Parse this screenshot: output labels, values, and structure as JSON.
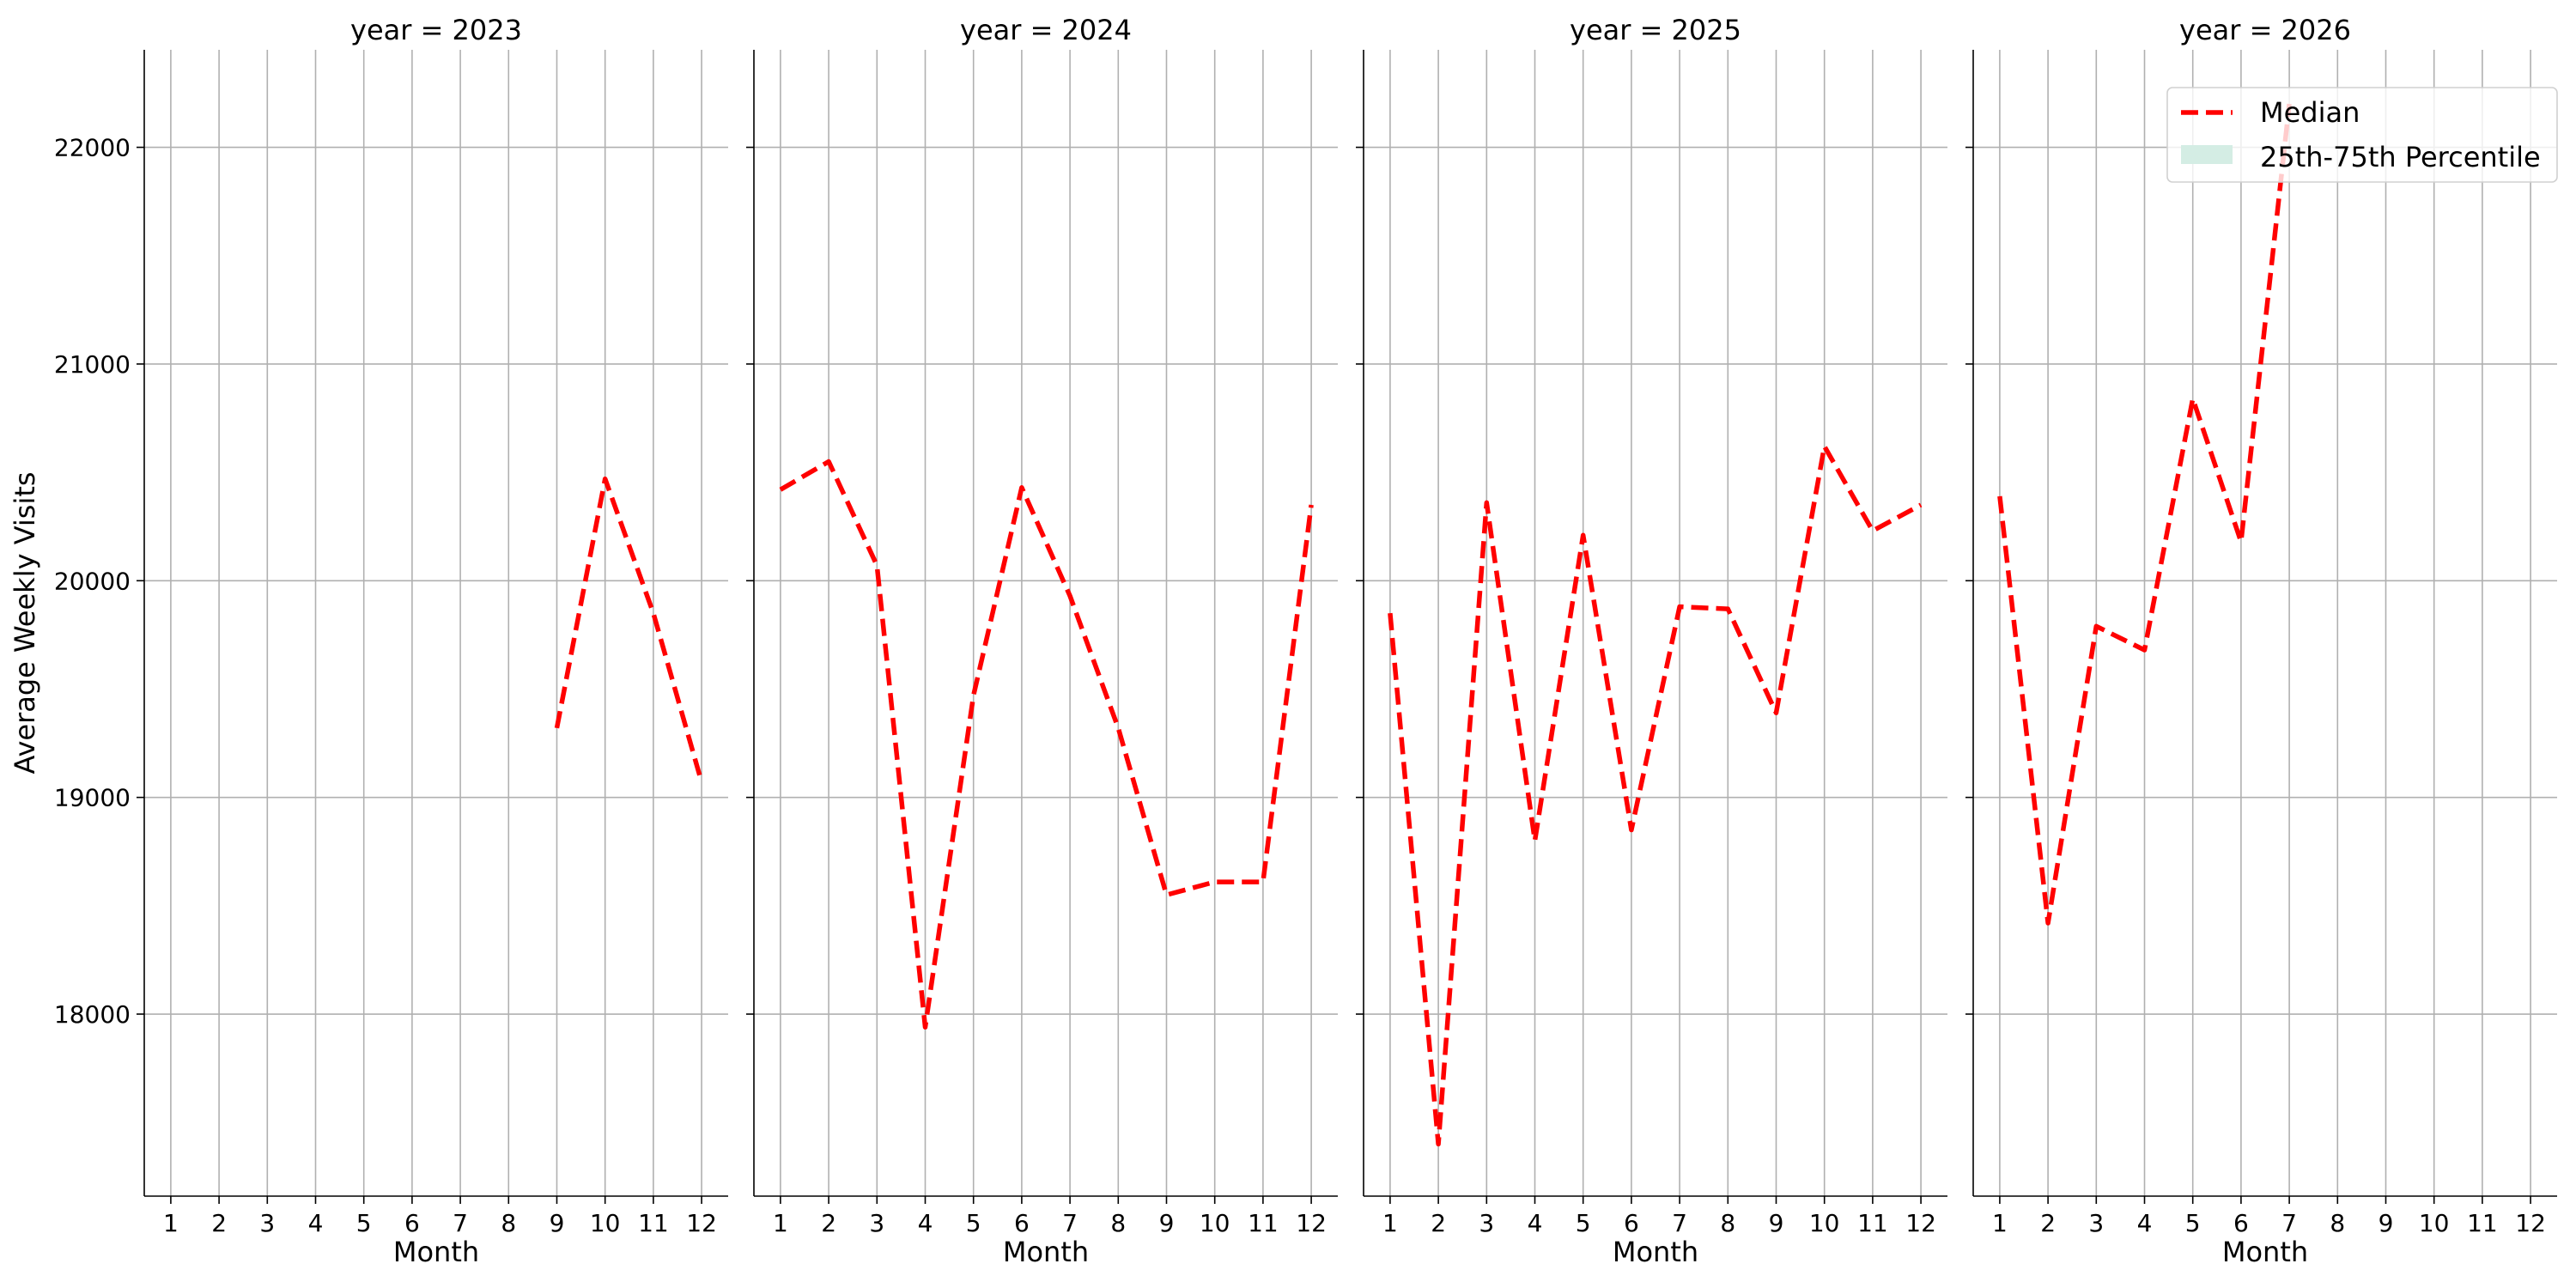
{
  "chart_data": {
    "type": "line",
    "facet_variable": "year",
    "facets": [
      {
        "title": "year = 2023",
        "year": 2023,
        "x": [
          9,
          10,
          11,
          12
        ],
        "median": [
          19320,
          20470,
          19850,
          19070
        ]
      },
      {
        "title": "year = 2024",
        "year": 2024,
        "x": [
          1,
          2,
          3,
          4,
          5,
          6,
          7,
          8,
          9,
          10,
          11,
          12
        ],
        "median": [
          20420,
          20550,
          20070,
          17940,
          19470,
          20430,
          19930,
          19320,
          18550,
          18610,
          18610,
          20350
        ]
      },
      {
        "title": "year = 2025",
        "year": 2025,
        "x": [
          1,
          2,
          3,
          4,
          5,
          6,
          7,
          8,
          9,
          10,
          11,
          12
        ],
        "median": [
          19850,
          17400,
          20360,
          18800,
          20210,
          18850,
          19880,
          19870,
          19390,
          20620,
          20230,
          20350
        ]
      },
      {
        "title": "year = 2026",
        "year": 2026,
        "x": [
          1,
          2,
          3,
          4,
          5,
          6,
          7
        ],
        "median": [
          20390,
          18420,
          19790,
          19680,
          20840,
          20180,
          22200
        ]
      }
    ],
    "xlabel": "Month",
    "ylabel": "Average Weekly Visits",
    "xticks": [
      1,
      2,
      3,
      4,
      5,
      6,
      7,
      8,
      9,
      10,
      11,
      12
    ],
    "yticks": [
      18000,
      19000,
      20000,
      21000,
      22000
    ],
    "xlim": [
      0.45,
      12.55
    ],
    "ylim": [
      17160,
      22450
    ],
    "grid": true,
    "legend": {
      "placement": "top-right",
      "entries": [
        {
          "label": "Median",
          "style": "dashed-line",
          "color": "#ff0000"
        },
        {
          "label": "25th-75th Percentile",
          "style": "band",
          "color": "#d4ede4"
        }
      ]
    },
    "colors": {
      "median_line": "#ff0000",
      "band_fill": "#d4ede4",
      "grid": "#b0b0b0"
    }
  }
}
